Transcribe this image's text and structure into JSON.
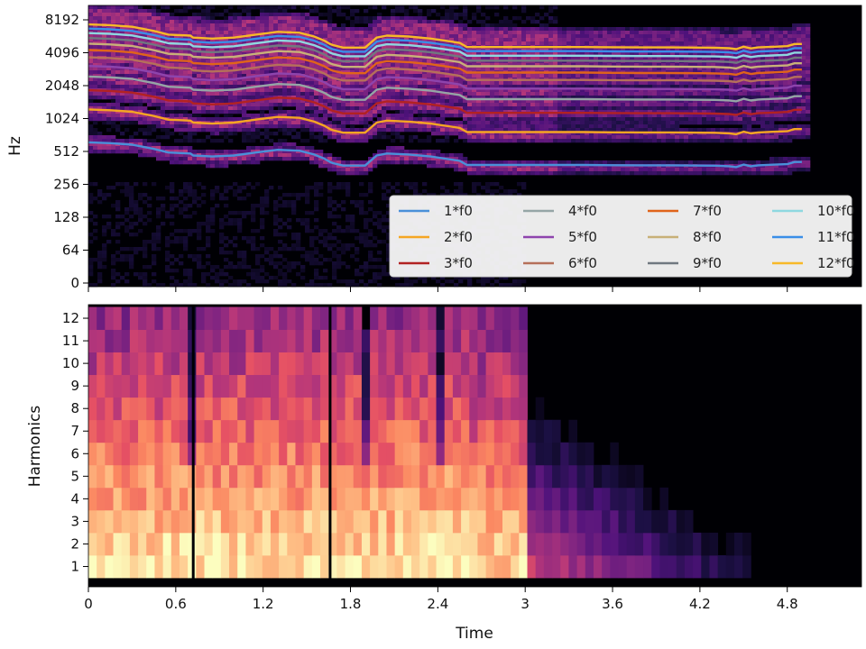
{
  "chart_data": [
    {
      "type": "heatmap",
      "title": "",
      "xlabel": "",
      "ylabel": "Hz",
      "y_scale": "log2",
      "y_ticks": [
        "0",
        "64",
        "128",
        "256",
        "512",
        "1024",
        "2048",
        "4096",
        "8192"
      ],
      "xlim": [
        0,
        5.5
      ],
      "colormap": "magma",
      "legend": {
        "placement": "lower-right",
        "columns": 4,
        "entries": [
          {
            "label": "1*f0",
            "color": "#4a90d9"
          },
          {
            "label": "2*f0",
            "color": "#f5a623"
          },
          {
            "label": "3*f0",
            "color": "#b22222"
          },
          {
            "label": "4*f0",
            "color": "#95a5a6"
          },
          {
            "label": "5*f0",
            "color": "#8e44ad"
          },
          {
            "label": "6*f0",
            "color": "#b5705a"
          },
          {
            "label": "7*f0",
            "color": "#e0641a"
          },
          {
            "label": "8*f0",
            "color": "#c8b078"
          },
          {
            "label": "9*f0",
            "color": "#707880"
          },
          {
            "label": "10*f0",
            "color": "#8ed8e0"
          },
          {
            "label": "11*f0",
            "color": "#3a8ee8"
          },
          {
            "label": "12*f0",
            "color": "#f7b928"
          }
        ]
      },
      "f0_contour": {
        "time": [
          0.0,
          0.15,
          0.3,
          0.45,
          0.55,
          0.7,
          0.72,
          0.85,
          1.0,
          1.15,
          1.3,
          1.45,
          1.55,
          1.62,
          1.66,
          1.68,
          1.75,
          1.9,
          1.98,
          2.05,
          2.2,
          2.35,
          2.45,
          2.55,
          2.6,
          2.8,
          3.0,
          3.2,
          3.4,
          3.6,
          3.8,
          4.0,
          4.2,
          4.3,
          4.4,
          4.45,
          4.5,
          4.55,
          4.6,
          4.7,
          4.8,
          4.85,
          4.9
        ],
        "hz": [
          620,
          610,
          590,
          540,
          500,
          490,
          470,
          460,
          470,
          500,
          530,
          520,
          480,
          440,
          410,
          400,
          380,
          380,
          470,
          490,
          480,
          460,
          440,
          420,
          385,
          385,
          385,
          385,
          385,
          383,
          382,
          382,
          380,
          379,
          375,
          368,
          388,
          374,
          382,
          387,
          392,
          410,
          410
        ]
      }
    },
    {
      "type": "heatmap",
      "title": "",
      "xlabel": "Time",
      "ylabel": "Harmonics",
      "x_ticks": [
        "0",
        "0.6",
        "1.2",
        "1.8",
        "2.4",
        "3",
        "3.6",
        "4.2",
        "4.8"
      ],
      "y_ticks": [
        "1",
        "2",
        "3",
        "4",
        "5",
        "6",
        "7",
        "8",
        "9",
        "10",
        "11",
        "12"
      ],
      "xlim": [
        0,
        5.5
      ],
      "colormap": "magma",
      "rows": 12,
      "time_columns": 64
    }
  ]
}
